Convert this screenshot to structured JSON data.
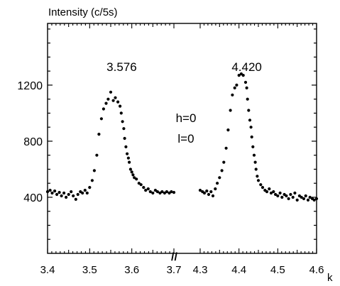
{
  "chart_data": {
    "type": "scatter",
    "ylabel": "Intensity (c/5s)",
    "xlabel": "k",
    "ylim": [
      0,
      1640
    ],
    "yticks": [
      "400",
      "800",
      "1200"
    ],
    "ytick_values": [
      400,
      800,
      1200
    ],
    "axis_break": "//",
    "panels": [
      {
        "xlim": [
          3.4,
          3.7
        ],
        "xticks": [
          "3.4",
          "3.5",
          "3.6",
          "3.7"
        ],
        "xtick_values": [
          3.4,
          3.5,
          3.6,
          3.7
        ],
        "peak_label": "3.576",
        "peak_label_x": 3.576,
        "peak_label_y": 1330,
        "x": [
          3.4,
          3.406,
          3.411,
          3.417,
          3.422,
          3.428,
          3.433,
          3.439,
          3.444,
          3.45,
          3.456,
          3.461,
          3.467,
          3.472,
          3.478,
          3.483,
          3.489,
          3.494,
          3.5,
          3.506,
          3.511,
          3.517,
          3.522,
          3.528,
          3.533,
          3.539,
          3.544,
          3.55,
          3.556,
          3.561,
          3.567,
          3.572,
          3.575,
          3.578,
          3.581,
          3.583,
          3.586,
          3.589,
          3.592,
          3.594,
          3.597,
          3.6,
          3.603,
          3.606,
          3.611,
          3.617,
          3.622,
          3.628,
          3.633,
          3.639,
          3.644,
          3.65,
          3.656,
          3.661,
          3.667,
          3.672,
          3.678,
          3.683,
          3.689,
          3.694,
          3.7
        ],
        "y": [
          440,
          450,
          430,
          445,
          420,
          435,
          410,
          430,
          400,
          420,
          440,
          410,
          385,
          420,
          440,
          430,
          450,
          430,
          470,
          520,
          590,
          700,
          850,
          960,
          1030,
          1070,
          1100,
          1150,
          1090,
          1110,
          1080,
          1050,
          1000,
          940,
          890,
          820,
          760,
          710,
          680,
          650,
          600,
          580,
          560,
          540,
          530,
          500,
          490,
          470,
          450,
          460,
          440,
          430,
          450,
          440,
          430,
          440,
          430,
          440,
          430,
          440,
          435
        ]
      },
      {
        "xlim": [
          4.3,
          4.6
        ],
        "xticks": [
          "4.3",
          "4.4",
          "4.5",
          "4.6"
        ],
        "xtick_values": [
          4.3,
          4.4,
          4.5,
          4.6
        ],
        "peak_label": "4.420",
        "peak_label_x": 4.42,
        "peak_label_y": 1330,
        "x": [
          4.3,
          4.306,
          4.311,
          4.317,
          4.322,
          4.328,
          4.333,
          4.339,
          4.344,
          4.35,
          4.356,
          4.361,
          4.367,
          4.372,
          4.378,
          4.383,
          4.389,
          4.394,
          4.4,
          4.406,
          4.411,
          4.417,
          4.42,
          4.422,
          4.425,
          4.428,
          4.431,
          4.433,
          4.436,
          4.439,
          4.442,
          4.444,
          4.447,
          4.45,
          4.456,
          4.461,
          4.467,
          4.472,
          4.478,
          4.483,
          4.489,
          4.494,
          4.5,
          4.506,
          4.511,
          4.517,
          4.522,
          4.528,
          4.533,
          4.539,
          4.544,
          4.55,
          4.556,
          4.561,
          4.567,
          4.572,
          4.578,
          4.583,
          4.589,
          4.594,
          4.6
        ],
        "y": [
          450,
          440,
          430,
          445,
          420,
          440,
          410,
          460,
          500,
          540,
          590,
          650,
          750,
          880,
          1020,
          1130,
          1180,
          1200,
          1270,
          1280,
          1270,
          1220,
          1180,
          1100,
          1020,
          950,
          900,
          830,
          760,
          700,
          650,
          600,
          550,
          520,
          490,
          470,
          450,
          440,
          460,
          430,
          440,
          420,
          410,
          430,
          400,
          420,
          410,
          390,
          420,
          400,
          430,
          380,
          410,
          400,
          390,
          410,
          380,
          400,
          390,
          380,
          390
        ]
      }
    ],
    "annotations": [
      "h=0",
      "l=0"
    ]
  }
}
